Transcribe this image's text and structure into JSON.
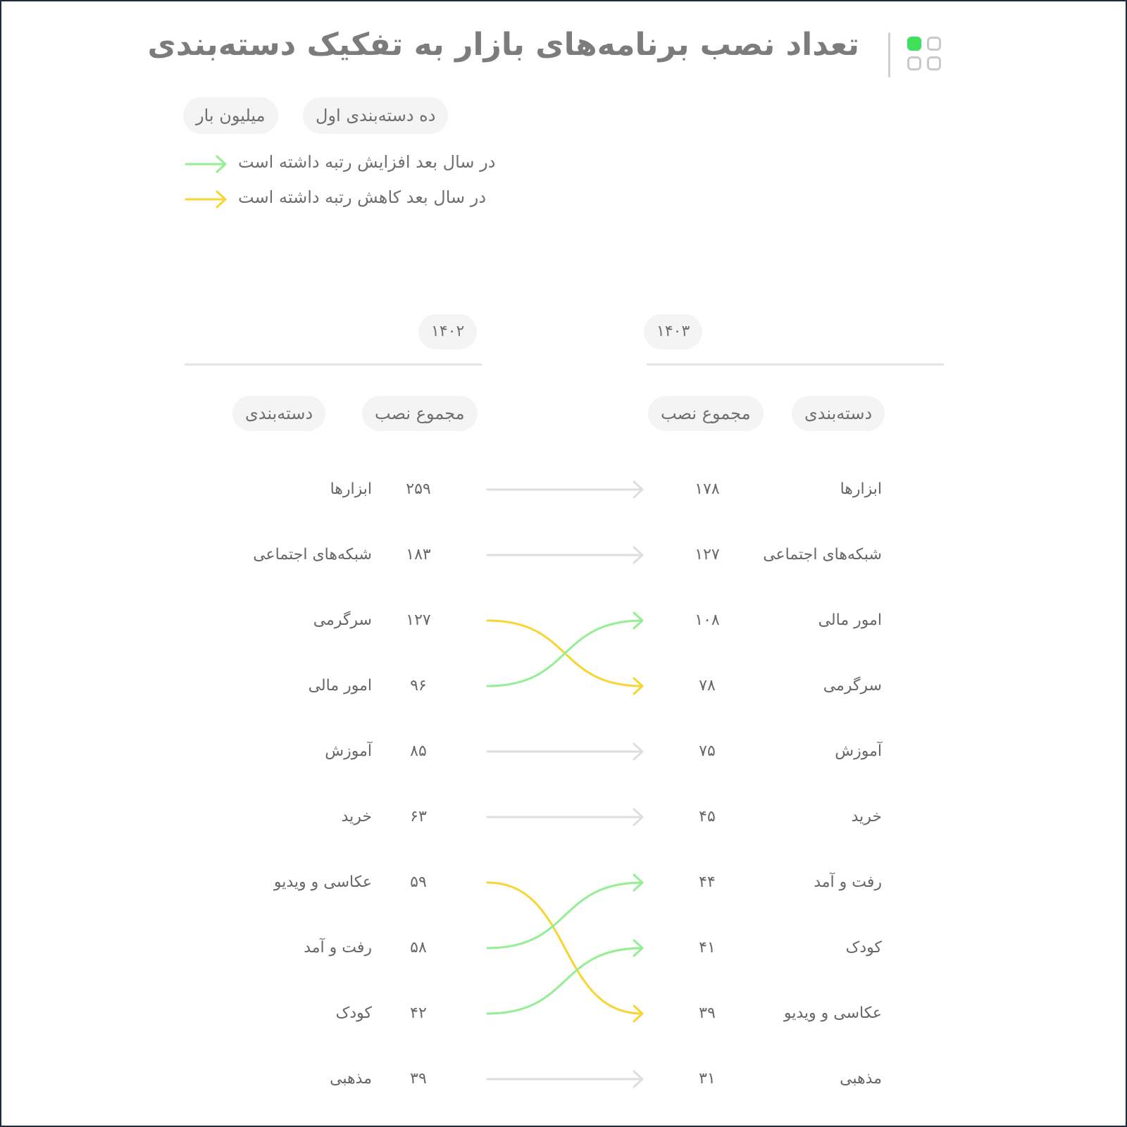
{
  "title": "تعداد نصب برنامه‌های بازار به تفکیک دسته‌بندی",
  "tags": {
    "top10": "ده دسته‌بندی اول",
    "unit": "میلیون بار"
  },
  "legend": {
    "increase": "در سال بعد افزایش رتبه داشته است",
    "decrease": "در سال بعد کاهش رتبه داشته است"
  },
  "colors": {
    "increase": "#94ee94",
    "decrease": "#f9d432",
    "unchanged": "#dedede",
    "logo_accent": "#3ee05c"
  },
  "icons": {
    "logo": "app-grid-icon",
    "legend_arrow": "arrow-right-icon"
  },
  "chart_data": {
    "type": "table",
    "years": [
      "۱۴۰۲",
      "۱۴۰۳"
    ],
    "headers": {
      "category": "دسته‌بندی",
      "installs": "مجموع نصب"
    },
    "year_1402": [
      {
        "category": "ابزارها",
        "installs": "۲۵۹"
      },
      {
        "category": "شبکه‌های اجتماعی",
        "installs": "۱۸۳"
      },
      {
        "category": "سرگرمی",
        "installs": "۱۲۷"
      },
      {
        "category": "امور مالی",
        "installs": "۹۶"
      },
      {
        "category": "آموزش",
        "installs": "۸۵"
      },
      {
        "category": "خرید",
        "installs": "۶۳"
      },
      {
        "category": "عکاسی و ویدیو",
        "installs": "۵۹"
      },
      {
        "category": "رفت و آمد",
        "installs": "۵۸"
      },
      {
        "category": "کودک",
        "installs": "۴۲"
      },
      {
        "category": "مذهبی",
        "installs": "۳۹"
      }
    ],
    "year_1403": [
      {
        "category": "ابزارها",
        "installs": "۱۷۸"
      },
      {
        "category": "شبکه‌های اجتماعی",
        "installs": "۱۲۷"
      },
      {
        "category": "امور مالی",
        "installs": "۱۰۸"
      },
      {
        "category": "سرگرمی",
        "installs": "۷۸"
      },
      {
        "category": "آموزش",
        "installs": "۷۵"
      },
      {
        "category": "خرید",
        "installs": "۴۵"
      },
      {
        "category": "رفت و آمد",
        "installs": "۴۴"
      },
      {
        "category": "کودک",
        "installs": "۴۱"
      },
      {
        "category": "عکاسی و ویدیو",
        "installs": "۳۹"
      },
      {
        "category": "مذهبی",
        "installs": "۳۱"
      }
    ],
    "rank_changes": [
      {
        "from_rank": 1,
        "to_rank": 1,
        "change": "same"
      },
      {
        "from_rank": 2,
        "to_rank": 2,
        "change": "same"
      },
      {
        "from_rank": 3,
        "to_rank": 4,
        "change": "decrease"
      },
      {
        "from_rank": 4,
        "to_rank": 3,
        "change": "increase"
      },
      {
        "from_rank": 5,
        "to_rank": 5,
        "change": "same"
      },
      {
        "from_rank": 6,
        "to_rank": 6,
        "change": "same"
      },
      {
        "from_rank": 7,
        "to_rank": 9,
        "change": "decrease"
      },
      {
        "from_rank": 8,
        "to_rank": 7,
        "change": "increase"
      },
      {
        "from_rank": 9,
        "to_rank": 8,
        "change": "increase"
      },
      {
        "from_rank": 10,
        "to_rank": 10,
        "change": "same"
      }
    ]
  }
}
